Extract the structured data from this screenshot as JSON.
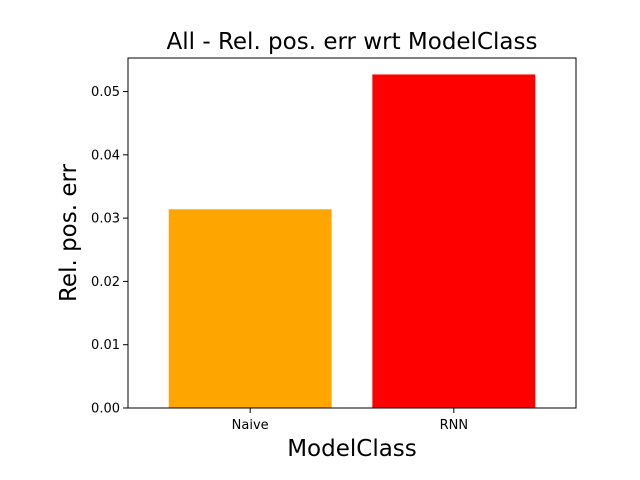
{
  "chart_data": {
    "type": "bar",
    "title": "All - Rel. pos. err wrt ModelClass",
    "xlabel": "ModelClass",
    "ylabel": "Rel. pos. err",
    "categories": [
      "Naive",
      "RNN"
    ],
    "values": [
      0.0314,
      0.0527
    ],
    "colors": [
      "#ffa500",
      "#ff0000"
    ],
    "ylim": [
      0,
      0.0553
    ],
    "yticks": [
      0.0,
      0.01,
      0.02,
      0.03,
      0.04,
      0.05
    ],
    "ytick_labels": [
      "0.00",
      "0.01",
      "0.02",
      "0.03",
      "0.04",
      "0.05"
    ],
    "grid": false,
    "legend": "none"
  }
}
